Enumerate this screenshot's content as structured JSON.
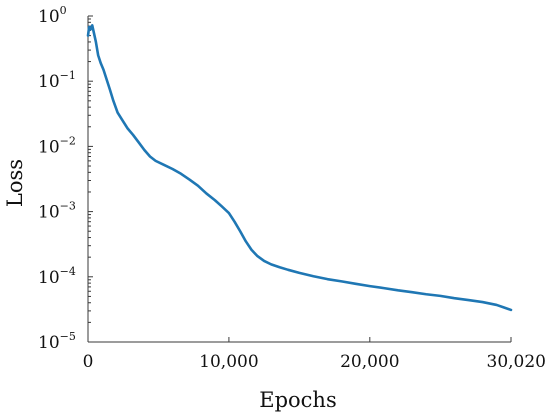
{
  "chart_data": {
    "type": "line",
    "xlabel": "Epochs",
    "ylabel": "Loss",
    "xlim": [
      0,
      30020
    ],
    "ylim": [
      1e-05,
      1
    ],
    "yscale": "log",
    "grid": false,
    "series_color": "#1f77b4",
    "x_ticks": [
      {
        "value": 0,
        "label": "0"
      },
      {
        "value": 10000,
        "label": "10,000"
      },
      {
        "value": 20000,
        "label": "20,000"
      },
      {
        "value": 30020,
        "label": "30,020"
      }
    ],
    "y_ticks": [
      {
        "value": 1,
        "base": "10",
        "exp": "0"
      },
      {
        "value": 0.1,
        "base": "10",
        "exp": "−1"
      },
      {
        "value": 0.01,
        "base": "10",
        "exp": "−2"
      },
      {
        "value": 0.001,
        "base": "10",
        "exp": "−3"
      },
      {
        "value": 0.0001,
        "base": "10",
        "exp": "−4"
      },
      {
        "value": 1e-05,
        "base": "10",
        "exp": "−5"
      }
    ],
    "series": [
      {
        "x": [
          0,
          80,
          180,
          300,
          420,
          560,
          720,
          900,
          1100,
          1300,
          1550,
          1800,
          2100,
          2400,
          2800,
          3200,
          3600,
          4000,
          4400,
          4800,
          5400,
          6000,
          6600,
          7200,
          7800,
          8400,
          9000,
          9500,
          10000,
          10400,
          10800,
          11200,
          11600,
          12000,
          12500,
          13000,
          13600,
          14200,
          15000,
          16000,
          17000,
          18000,
          19000,
          20000,
          21000,
          22000,
          23000,
          24000,
          25000,
          26000,
          27000,
          28000,
          29000,
          29500,
          30020
        ],
        "y": [
          0.5,
          0.68,
          0.62,
          0.72,
          0.55,
          0.4,
          0.25,
          0.19,
          0.15,
          0.11,
          0.075,
          0.05,
          0.033,
          0.026,
          0.019,
          0.015,
          0.0115,
          0.0088,
          0.007,
          0.006,
          0.0052,
          0.0045,
          0.0038,
          0.0031,
          0.0025,
          0.0019,
          0.0015,
          0.0012,
          0.00095,
          0.0007,
          0.0005,
          0.00035,
          0.00026,
          0.00021,
          0.000175,
          0.000155,
          0.00014,
          0.000128,
          0.000115,
          0.000102,
          9.2e-05,
          8.5e-05,
          7.8e-05,
          7.2e-05,
          6.7e-05,
          6.2e-05,
          5.8e-05,
          5.4e-05,
          5.1e-05,
          4.7e-05,
          4.4e-05,
          4.1e-05,
          3.7e-05,
          3.4e-05,
          3.1e-05
        ]
      }
    ]
  }
}
